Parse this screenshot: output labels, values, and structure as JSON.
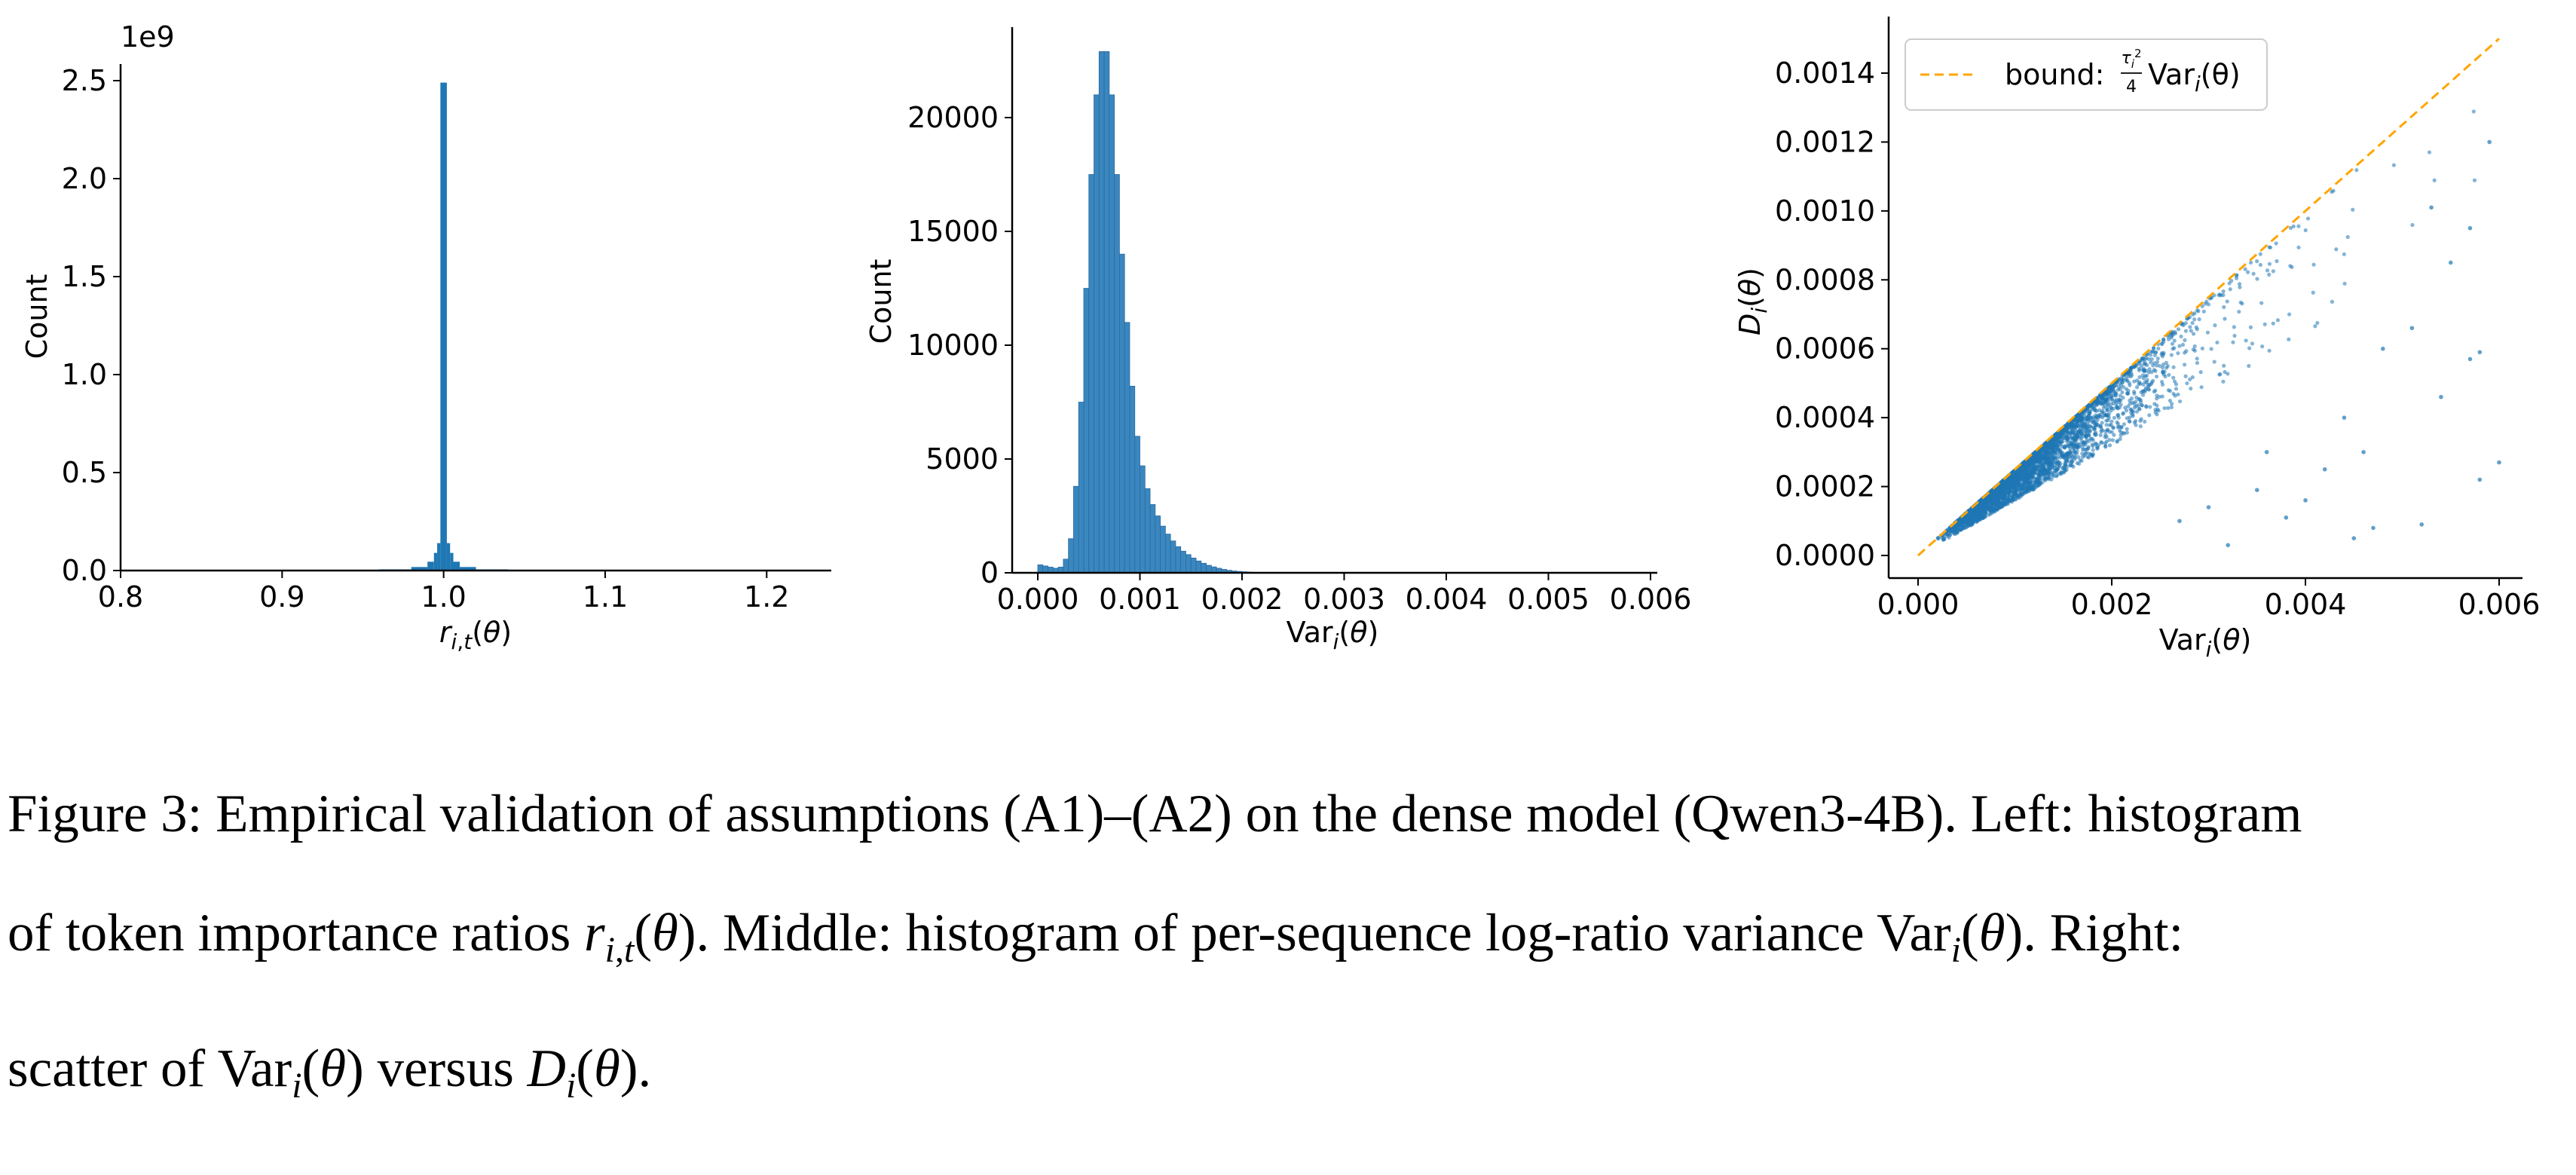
{
  "chart_data": [
    {
      "type": "bar",
      "panel": "left",
      "offset_text": "1e9",
      "ylabel": "Count",
      "xlabel": "r_{i,t}(θ)",
      "xlim": [
        0.8,
        1.24
      ],
      "ylim": [
        0,
        2.62
      ],
      "xticks": [
        "0.8",
        "0.9",
        "1.0",
        "1.1",
        "1.2"
      ],
      "yticks": [
        "0.0",
        "0.5",
        "1.0",
        "1.5",
        "2.0",
        "2.5"
      ],
      "color": "#1f77b4",
      "bins": [
        {
          "x0": 0.93,
          "x1": 0.96,
          "y": 0.001
        },
        {
          "x0": 0.96,
          "x1": 0.98,
          "y": 0.006
        },
        {
          "x0": 0.98,
          "x1": 0.99,
          "y": 0.018
        },
        {
          "x0": 0.99,
          "x1": 0.994,
          "y": 0.045
        },
        {
          "x0": 0.994,
          "x1": 0.996,
          "y": 0.09
        },
        {
          "x0": 0.996,
          "x1": 0.998,
          "y": 0.14
        },
        {
          "x0": 0.998,
          "x1": 1.002,
          "y": 2.49
        },
        {
          "x0": 1.002,
          "x1": 1.004,
          "y": 0.14
        },
        {
          "x0": 1.004,
          "x1": 1.006,
          "y": 0.09
        },
        {
          "x0": 1.006,
          "x1": 1.01,
          "y": 0.045
        },
        {
          "x0": 1.01,
          "x1": 1.02,
          "y": 0.018
        },
        {
          "x0": 1.02,
          "x1": 1.04,
          "y": 0.006
        },
        {
          "x0": 1.04,
          "x1": 1.08,
          "y": 0.001
        }
      ]
    },
    {
      "type": "bar",
      "panel": "middle",
      "ylabel": "Count",
      "xlabel": "Var_i(θ)",
      "xlim": [
        -0.0002,
        0.0062
      ],
      "ylim": [
        0,
        24000
      ],
      "xticks": [
        "0.000",
        "0.001",
        "0.002",
        "0.003",
        "0.004",
        "0.005",
        "0.006"
      ],
      "yticks": [
        "0",
        "5000",
        "10000",
        "15000",
        "20000"
      ],
      "color": "#3a87c0",
      "bin_width": 5e-05,
      "bin_start": 0.0,
      "counts": [
        350,
        300,
        250,
        200,
        250,
        600,
        1500,
        3800,
        7500,
        12500,
        17500,
        21000,
        22900,
        22900,
        21000,
        17500,
        14000,
        11000,
        8200,
        6000,
        4700,
        3700,
        3000,
        2500,
        2050,
        1700,
        1400,
        1150,
        950,
        800,
        650,
        520,
        420,
        330,
        260,
        200,
        150,
        110,
        80,
        60,
        45,
        32,
        22,
        15,
        10,
        6,
        4,
        2
      ]
    },
    {
      "type": "scatter",
      "panel": "right",
      "ylabel": "D_i(θ)",
      "xlabel": "Var_i(θ)",
      "xlim": [
        -0.0003,
        0.0064
      ],
      "ylim": [
        -7e-05,
        0.00157
      ],
      "xticks": [
        "0.000",
        "0.002",
        "0.004",
        "0.006"
      ],
      "yticks": [
        "0.0000",
        "0.0002",
        "0.0004",
        "0.0006",
        "0.0008",
        "0.0010",
        "0.0012",
        "0.0014"
      ],
      "point_color": "#1f77b4",
      "bound_color": "#ffa500",
      "legend": {
        "position": "top-left",
        "label": "bound: τ_i²/4 Var_i(θ)",
        "prefix": "bound:",
        "suffix": "Var",
        "subscript": "i",
        "tail": "(θ)",
        "frac_num": "τ",
        "frac_num_sub": "i",
        "frac_num_sup": "2",
        "frac_den": "4"
      },
      "bound": {
        "slope": 0.25,
        "x": [
          0.0,
          0.006
        ]
      },
      "points_summary": {
        "count": 4000,
        "x_range": [
          0.0,
          0.006
        ],
        "relation": "most points lie just below y = 0.25x, with sparse outliers further below"
      },
      "outliers": [
        [
          0.0032,
          3e-05
        ],
        [
          0.0045,
          5e-05
        ],
        [
          0.0047,
          8e-05
        ],
        [
          0.0052,
          9e-05
        ],
        [
          0.0058,
          0.00022
        ],
        [
          0.006,
          0.00027
        ],
        [
          0.0054,
          0.00046
        ],
        [
          0.0057,
          0.00057
        ],
        [
          0.0058,
          0.00059
        ],
        [
          0.0051,
          0.00066
        ],
        [
          0.0046,
          0.0003
        ],
        [
          0.0042,
          0.00025
        ],
        [
          0.004,
          0.00016
        ],
        [
          0.0038,
          0.00011
        ],
        [
          0.0035,
          0.00019
        ],
        [
          0.0055,
          0.00085
        ],
        [
          0.0057,
          0.00095
        ],
        [
          0.0053,
          0.00101
        ],
        [
          0.0059,
          0.0012
        ],
        [
          0.0048,
          0.0006
        ],
        [
          0.0044,
          0.0004
        ],
        [
          0.0036,
          0.0003
        ],
        [
          0.003,
          0.00014
        ],
        [
          0.0027,
          0.0001
        ]
      ]
    }
  ],
  "caption": {
    "line1": "Figure 3: Empirical validation of assumptions (A1)–(A2) on the dense model (Qwen3-4B). Left: histogram",
    "line2_a": "of token importance ratios ",
    "line2_b": ". Middle: histogram of per-sequence log-ratio variance Var",
    "line2_c": ". Right:",
    "line3_a": "scatter of Var",
    "line3_b": " versus ",
    "line3_c": "."
  }
}
